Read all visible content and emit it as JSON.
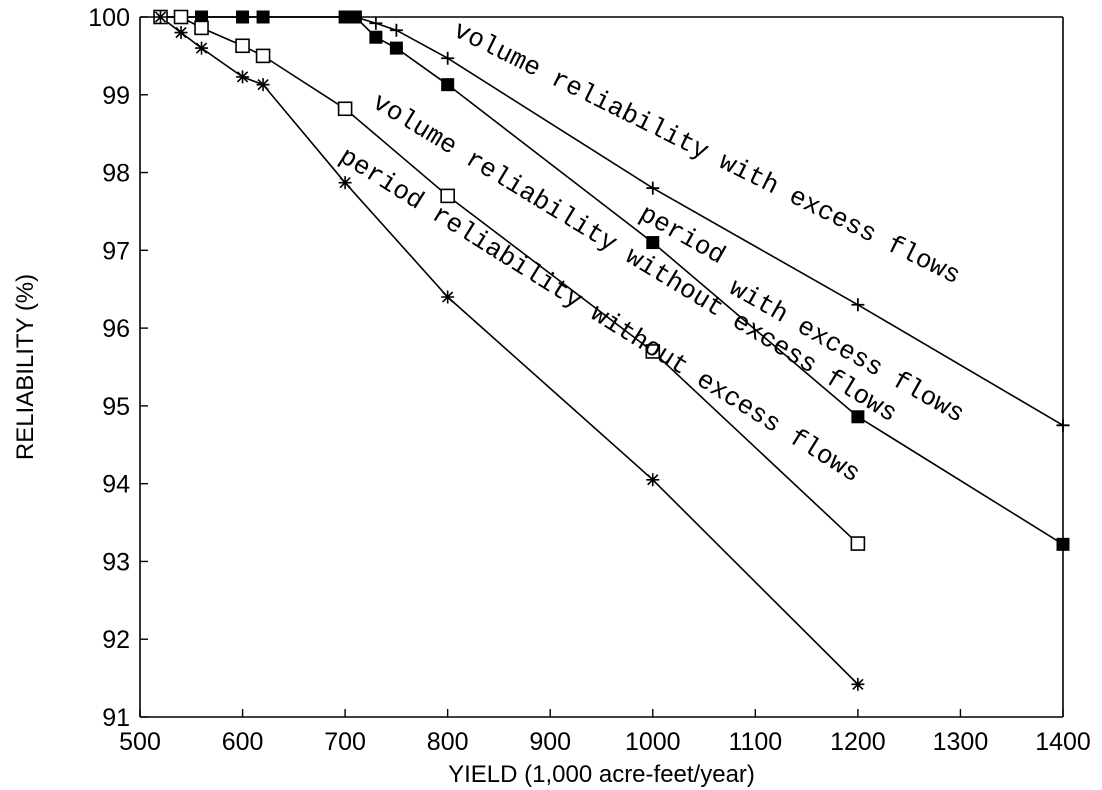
{
  "chart_data": {
    "type": "line",
    "title": "",
    "xlabel": "YIELD (1,000 acre-feet/year)",
    "ylabel": "RELIABILITY (%)",
    "xlim": [
      500,
      1400
    ],
    "ylim": [
      91,
      100
    ],
    "x_ticks": [
      500,
      600,
      700,
      800,
      900,
      1000,
      1100,
      1200,
      1300,
      1400
    ],
    "y_ticks": [
      91,
      92,
      93,
      94,
      95,
      96,
      97,
      98,
      99,
      100
    ],
    "grid": false,
    "legend": "none",
    "series": [
      {
        "name": "volume reliability with excess flows",
        "marker": "plus",
        "x": [
          520,
          540,
          560,
          600,
          620,
          700,
          710,
          730,
          750,
          800,
          1000,
          1200,
          1400
        ],
        "y": [
          100,
          100,
          100,
          100,
          100,
          100,
          100,
          99.92,
          99.83,
          99.47,
          97.8,
          96.3,
          94.75
        ]
      },
      {
        "name": "period with excess flows",
        "marker": "filled-square",
        "x": [
          520,
          540,
          560,
          600,
          620,
          700,
          710,
          730,
          750,
          800,
          1000,
          1200,
          1400
        ],
        "y": [
          100,
          100,
          100,
          100,
          100,
          100,
          100,
          99.74,
          99.6,
          99.13,
          97.1,
          94.86,
          93.22
        ]
      },
      {
        "name": "volume reliability without excess flows",
        "marker": "open-square",
        "x": [
          520,
          540,
          560,
          600,
          620,
          700,
          800,
          1000,
          1200
        ],
        "y": [
          100,
          100,
          99.86,
          99.63,
          99.5,
          98.82,
          97.7,
          95.7,
          93.23
        ]
      },
      {
        "name": "period reliability without excess flows",
        "marker": "star",
        "x": [
          520,
          540,
          560,
          600,
          620,
          700,
          800,
          1000,
          1200
        ],
        "y": [
          100,
          99.8,
          99.6,
          99.23,
          99.13,
          97.87,
          96.4,
          94.05,
          91.42
        ]
      }
    ],
    "annotations": [
      {
        "text": "volume reliability with excess flows",
        "series": 0
      },
      {
        "text": "period",
        "series": 1
      },
      {
        "text": "with excess flows",
        "series": 1
      },
      {
        "text": "volume reliability without excess flows",
        "series": 2
      },
      {
        "text": "period reliability without excess flows",
        "series": 3
      }
    ]
  }
}
